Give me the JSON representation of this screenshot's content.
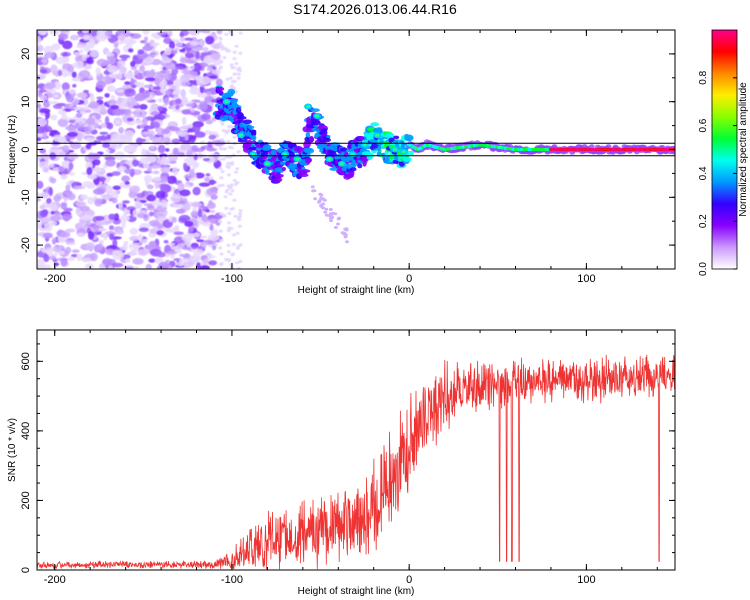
{
  "title": "S174.2026.013.06.44.R16",
  "chart_data": [
    {
      "type": "heatmap",
      "title": "S174.2026.013.06.44.R16",
      "xlabel": "Height of straight line (km)",
      "ylabel": "Frequency (Hz)",
      "xlim": [
        -210,
        150
      ],
      "ylim": [
        -25,
        25
      ],
      "xticks": [
        -200,
        -100,
        0,
        100
      ],
      "yticks": [
        -20,
        -10,
        0,
        10,
        20
      ],
      "colorbar": {
        "label": "Normalized spectral amplitude",
        "range": [
          0.0,
          1.0
        ],
        "ticks": [
          "0.0",
          "0.2",
          "0.4",
          "0.6",
          "0.8"
        ],
        "colors": [
          "#ffffff",
          "#cc99ff",
          "#8800ff",
          "#3300ff",
          "#0099ff",
          "#00ffee",
          "#00ff33",
          "#88ff00",
          "#ffee00",
          "#ff8800",
          "#ff0000",
          "#ff0088"
        ]
      },
      "features": {
        "noise_region_x": [
          -210,
          -107
        ],
        "signal_track": [
          [
            -108,
            10
          ],
          [
            -100,
            9
          ],
          [
            -95,
            5
          ],
          [
            -90,
            2
          ],
          [
            -85,
            -1
          ],
          [
            -80,
            -2
          ],
          [
            -75,
            -4
          ],
          [
            -70,
            -1
          ],
          [
            -65,
            -2
          ],
          [
            -60,
            -3
          ],
          [
            -55,
            6
          ],
          [
            -50,
            4
          ],
          [
            -45,
            -1
          ],
          [
            -40,
            -2
          ],
          [
            -35,
            -3
          ],
          [
            -30,
            -1
          ],
          [
            -25,
            0
          ],
          [
            -20,
            3
          ],
          [
            -15,
            1
          ],
          [
            -10,
            0
          ],
          [
            -5,
            -1
          ],
          [
            0,
            1
          ],
          [
            5,
            0
          ],
          [
            10,
            1
          ],
          [
            20,
            0
          ],
          [
            40,
            1
          ],
          [
            60,
            0
          ],
          [
            80,
            0
          ],
          [
            100,
            0
          ],
          [
            120,
            0
          ],
          [
            150,
            0
          ]
        ]
      }
    },
    {
      "type": "line",
      "xlabel": "Height of straight line (km)",
      "ylabel": "SNR (10 * v/v)",
      "xlim": [
        -210,
        150
      ],
      "ylim": [
        0,
        690
      ],
      "xticks": [
        -200,
        -100,
        0,
        100
      ],
      "yticks": [
        0,
        200,
        400,
        600
      ],
      "color": "#ee3333",
      "envelope": {
        "x": [
          -210,
          -150,
          -110,
          -100,
          -90,
          -80,
          -70,
          -60,
          -50,
          -40,
          -30,
          -20,
          -10,
          0,
          10,
          20,
          30,
          40,
          60,
          80,
          100,
          120,
          150
        ],
        "base": [
          15,
          15,
          15,
          30,
          60,
          80,
          100,
          110,
          120,
          130,
          140,
          180,
          260,
          360,
          440,
          500,
          520,
          530,
          540,
          545,
          545,
          550,
          560
        ],
        "amplitude": [
          12,
          12,
          15,
          40,
          80,
          110,
          110,
          120,
          120,
          130,
          140,
          160,
          170,
          160,
          150,
          110,
          90,
          80,
          75,
          75,
          75,
          75,
          70
        ]
      },
      "dropouts_x": [
        51,
        55,
        58,
        62,
        141
      ]
    }
  ]
}
